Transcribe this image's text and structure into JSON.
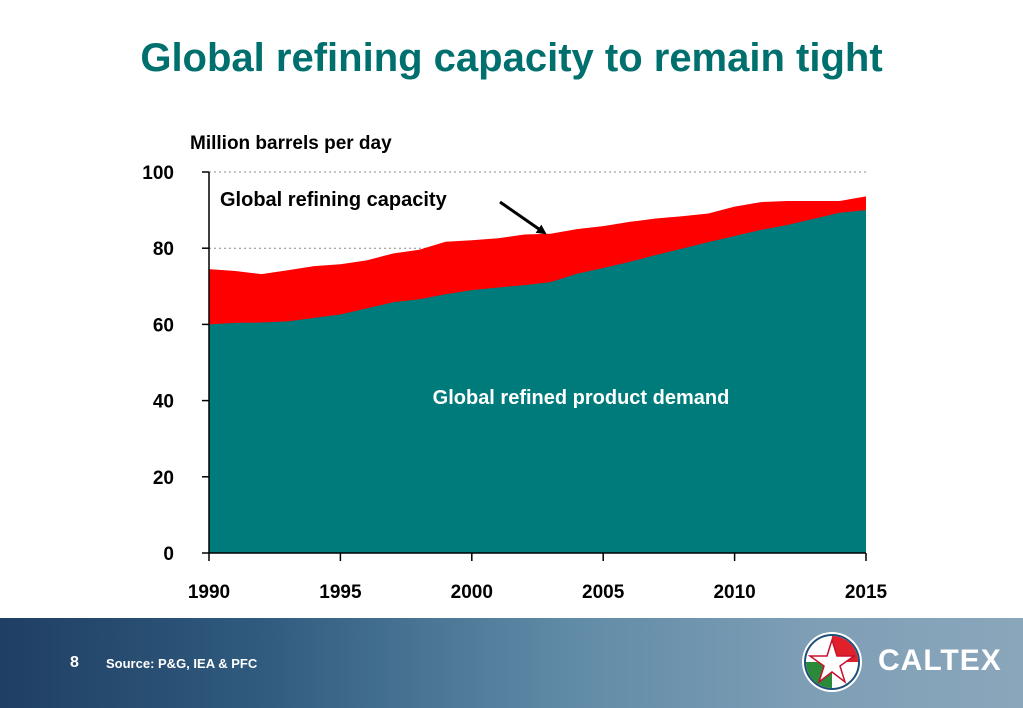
{
  "slide": {
    "title": "Global refining capacity to remain tight",
    "page_number": "8",
    "source": "Source:  P&G, IEA & PFC",
    "brand": "CALTEX"
  },
  "colors": {
    "title": "#00706E",
    "demand_area": "#007B7B",
    "capacity_area": "#FF0000",
    "demand_label": "#FFFFFF",
    "capacity_label": "#000000"
  },
  "chart_data": {
    "type": "area",
    "ylabel": "Million barrels per day",
    "xlabel": "",
    "xlim": [
      1990,
      2015
    ],
    "ylim": [
      0,
      100
    ],
    "x_ticks": [
      1990,
      1995,
      2000,
      2005,
      2010,
      2015
    ],
    "y_ticks": [
      0,
      20,
      40,
      60,
      80,
      100
    ],
    "grid": "dotted at 80 and 100",
    "x": [
      1990,
      1991,
      1992,
      1993,
      1994,
      1995,
      1996,
      1997,
      1998,
      1999,
      2000,
      2001,
      2002,
      2003,
      2004,
      2005,
      2006,
      2007,
      2008,
      2009,
      2010,
      2011,
      2012,
      2013,
      2014,
      2015
    ],
    "series": [
      {
        "name": "Global refined product demand",
        "values": [
          60.0,
          60.4,
          60.5,
          60.8,
          61.7,
          62.6,
          64.2,
          65.8,
          66.6,
          67.9,
          69.0,
          69.7,
          70.3,
          71.1,
          73.3,
          74.8,
          76.4,
          78.2,
          79.9,
          81.6,
          83.2,
          84.8,
          86.1,
          87.7,
          89.3,
          90.0
        ]
      },
      {
        "name": "Global refining capacity",
        "values": [
          74.5,
          74.0,
          73.2,
          74.2,
          75.3,
          75.8,
          76.8,
          78.6,
          79.6,
          81.7,
          82.1,
          82.6,
          83.6,
          83.8,
          85.0,
          85.8,
          86.9,
          87.8,
          88.4,
          89.1,
          90.9,
          92.1,
          92.4,
          92.4,
          92.4,
          93.6
        ]
      }
    ],
    "annotations": [
      {
        "text": "Global refining capacity",
        "points_to": {
          "x": 2002.8,
          "y": 83.7
        }
      },
      {
        "text": "Global refined product demand"
      }
    ]
  }
}
